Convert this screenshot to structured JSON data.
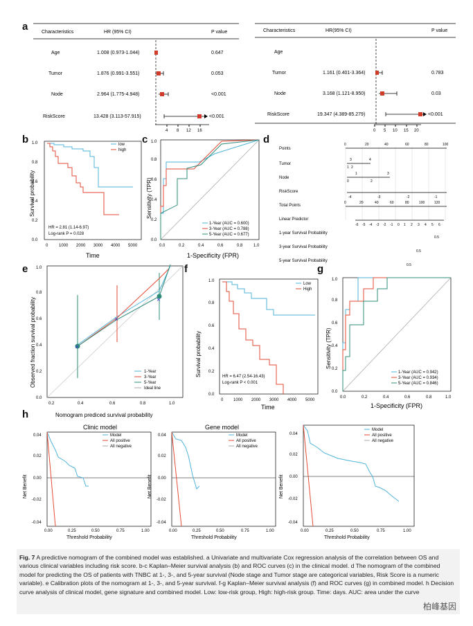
{
  "panel_labels": {
    "a": "a",
    "b": "b",
    "c": "c",
    "d": "d",
    "e": "e",
    "f": "f",
    "g": "g",
    "h": "h"
  },
  "forest_left": {
    "headers": [
      "Characteristics",
      "HR (95% CI)",
      "P value"
    ],
    "rows": [
      {
        "name": "Age",
        "hr": "1.008 (0.973-1.044)",
        "p": "0.647",
        "est": 1.008,
        "lo": 0.973,
        "hi": 1.044
      },
      {
        "name": "Tumor",
        "hr": "1.876 (0.991-3.551)",
        "p": "0.053",
        "est": 1.876,
        "lo": 0.991,
        "hi": 3.551
      },
      {
        "name": "Node",
        "hr": "2.964 (1.775-4.948)",
        "p": "<0.001",
        "est": 2.964,
        "lo": 1.775,
        "hi": 4.948
      },
      {
        "name": "RiskScore",
        "hr": "13.428 (3.113-57.915)",
        "p": "<0.001",
        "est": 13.428,
        "lo": 3.113,
        "hi": 57.915
      }
    ],
    "ticks": [
      "4",
      "8",
      "12",
      "16"
    ]
  },
  "forest_right": {
    "headers": [
      "Characteristics",
      "HR(95% CI)",
      "P value"
    ],
    "rows": [
      {
        "name": "Age",
        "hr": "",
        "p": ""
      },
      {
        "name": "Tumor",
        "hr": "1.161 (0.401-3.364)",
        "p": "0.783",
        "est": 1.161,
        "lo": 0.401,
        "hi": 3.364
      },
      {
        "name": "Node",
        "hr": "3.168 (1.121-8.950)",
        "p": "0.03",
        "est": 3.168,
        "lo": 1.121,
        "hi": 8.95
      },
      {
        "name": "RiskScore",
        "hr": "19.347 (4.389-85.279)",
        "p": "<0.001",
        "est": 19.347,
        "lo": 4.389,
        "hi": 85.279
      }
    ],
    "ticks": [
      "0",
      "5",
      "10",
      "15",
      "20"
    ]
  },
  "panel_b": {
    "ylabel": "Survival probability",
    "xlabel": "Time",
    "legend": [
      "low",
      "high"
    ],
    "hr": "HR = 2.81 (1.14-6.97)",
    "pval": "Log-rank P = 0.028",
    "xticks": [
      "0",
      "1000",
      "2000",
      "3000",
      "4000",
      "5000"
    ],
    "yticks": [
      "0.0",
      "0.2",
      "0.4",
      "0.6",
      "0.8",
      "1.0"
    ]
  },
  "panel_c": {
    "ylabel": "Sensitivity (TPR)",
    "xlabel": "1-Specificity (FPR)",
    "legend": [
      "1-Year (AUC = 0.600)",
      "3-Year (AUC = 0.788)",
      "5-Year (AUC = 0.677)"
    ],
    "ticks": [
      "0.0",
      "0.2",
      "0.4",
      "0.6",
      "0.8",
      "1.0"
    ]
  },
  "panel_d": {
    "rows": [
      "Points",
      "Tumor",
      "Node",
      "RiskScore",
      "Total Points",
      "Linear Predictor",
      "1-year Survival Probability",
      "3-year Survival Probability",
      "5-year Survival Probability"
    ],
    "points_ticks": [
      "0",
      "20",
      "40",
      "60",
      "80",
      "100"
    ],
    "total_ticks": [
      "0",
      "20",
      "40",
      "60",
      "80",
      "100",
      "120"
    ],
    "lp_ticks": [
      "-6",
      "-5",
      "-4",
      "-3",
      "-2",
      "-1",
      "0",
      "1",
      "2",
      "3",
      "4",
      "5",
      "6"
    ],
    "risk_ticks": [
      "-4",
      "-3",
      "-2",
      "-1"
    ],
    "tumor_labels": [
      "3",
      "4",
      "1",
      "2"
    ],
    "node_labels": [
      "1",
      "3",
      "0",
      "2"
    ],
    "surv1": "0.5",
    "surv3": "0.5",
    "surv5": "0.5"
  },
  "panel_e": {
    "ylabel": "Observed fraction survival probability",
    "xlabel": "Nomogram prediced survival probability",
    "legend": [
      "1-Year",
      "3-Year",
      "5-Year",
      "Ideal line"
    ],
    "xticks": [
      "0.2",
      "0.4",
      "0.6",
      "0.8",
      "1.0"
    ],
    "yticks": [
      "0.0",
      "0.2",
      "0.4",
      "0.6",
      "0.8",
      "1.0"
    ]
  },
  "panel_f": {
    "ylabel": "Survival probability",
    "xlabel": "Time",
    "legend": [
      "Low",
      "High"
    ],
    "hr": "HR = 6.47 (2.54-16.43)",
    "pval": "Log-rank P < 0.001",
    "xticks": [
      "0",
      "1000",
      "2000",
      "3000",
      "4000",
      "5000"
    ],
    "yticks": [
      "0.0",
      "0.2",
      "0.4",
      "0.6",
      "0.8",
      "1.0"
    ]
  },
  "panel_g": {
    "ylabel": "Sensitivity (TPR)",
    "xlabel": "1-Specificity (FPR)",
    "legend": [
      "1-Year (AUC = 0.942)",
      "3-Year (AUC = 0.934)",
      "5-Year (AUC = 0.846)"
    ],
    "ticks": [
      "0.0",
      "0.2",
      "0.4",
      "0.6",
      "0.8",
      "1.0"
    ]
  },
  "panel_h": {
    "titles": [
      "Clinic model",
      "Gene model",
      ""
    ],
    "ylabel": "Net Benefit",
    "xlabel": "Threshold Probability",
    "legend": [
      "Model",
      "All positive",
      "All negative"
    ],
    "xticks": [
      "0.00",
      "0.25",
      "0.50",
      "0.75",
      "1.00"
    ],
    "yticks": [
      "0.04",
      "0.02",
      "0.00",
      "-0.02",
      "-0.04"
    ]
  },
  "chart_data": [
    {
      "type": "line",
      "title": "b",
      "series": [
        {
          "name": "low",
          "x": [
            0,
            500,
            1000,
            1500,
            2000,
            2500,
            3000,
            3500,
            4000,
            5000
          ],
          "y": [
            1.0,
            0.98,
            0.96,
            0.94,
            0.91,
            0.86,
            0.52,
            0.52,
            0.52,
            0.52
          ]
        },
        {
          "name": "high",
          "x": [
            0,
            500,
            1000,
            1500,
            2000,
            2500,
            3000,
            3500,
            4000,
            4500
          ],
          "y": [
            1.0,
            0.88,
            0.8,
            0.74,
            0.6,
            0.47,
            0.47,
            0.24,
            0.24,
            0.24
          ]
        }
      ],
      "xlabel": "Time",
      "ylabel": "Survival probability",
      "ylim": [
        0,
        1
      ]
    },
    {
      "type": "line",
      "title": "c",
      "series": [
        {
          "name": "1-Year",
          "values": [
            0.6
          ]
        },
        {
          "name": "3-Year",
          "values": [
            0.788
          ]
        },
        {
          "name": "5-Year",
          "values": [
            0.677
          ]
        }
      ],
      "xlabel": "1-Specificity (FPR)",
      "ylabel": "Sensitivity (TPR)"
    },
    {
      "type": "scatter",
      "title": "e",
      "series": [
        {
          "name": "1-Year",
          "x": [
            0.4,
            0.66,
            0.93,
            0.98
          ],
          "y": [
            0.49,
            0.68,
            0.82,
            0.97
          ]
        },
        {
          "name": "3-Year",
          "x": [
            0.4,
            0.66,
            0.93,
            0.98
          ],
          "y": [
            0.5,
            0.68,
            0.9,
            0.96
          ]
        },
        {
          "name": "5-Year",
          "x": [
            0.4,
            0.66,
            0.93,
            0.98
          ],
          "y": [
            0.49,
            0.67,
            0.82,
            0.96
          ]
        }
      ],
      "xlabel": "Nomogram prediced survival probability",
      "ylabel": "Observed fraction survival probability"
    },
    {
      "type": "line",
      "title": "f",
      "series": [
        {
          "name": "Low",
          "x": [
            0,
            500,
            1000,
            1500,
            2000,
            2500,
            3000,
            4000,
            5000
          ],
          "y": [
            1.0,
            0.97,
            0.9,
            0.84,
            0.84,
            0.84,
            0.72,
            0.72,
            0.72
          ]
        },
        {
          "name": "High",
          "x": [
            0,
            500,
            1000,
            1500,
            2000,
            2500,
            3000,
            3500
          ],
          "y": [
            1.0,
            0.85,
            0.7,
            0.57,
            0.48,
            0.33,
            0.2,
            0.0
          ]
        }
      ],
      "xlabel": "Time",
      "ylabel": "Survival probability",
      "ylim": [
        0,
        1
      ]
    },
    {
      "type": "line",
      "title": "g",
      "series": [
        {
          "name": "1-Year",
          "values": [
            0.942
          ]
        },
        {
          "name": "3-Year",
          "values": [
            0.934
          ]
        },
        {
          "name": "5-Year",
          "values": [
            0.846
          ]
        }
      ],
      "xlabel": "1-Specificity (FPR)",
      "ylabel": "Sensitivity (TPR)"
    }
  ],
  "caption": {
    "fig": "Fig. 7",
    "text": "A predictive nomogram of the combined model was established. a Univariate and multivariate Cox regression analysis of the correlation between OS and various clinical variables including risk score. b-c Kaplan–Meier survival analysis (b) and ROC curves (c) in the clinical model. d The nomogram of the combined model for predicting the OS of patients with TNBC at 1-, 3-, and 5-year survival (Node stage and Tumor stage are categorical variables, Risk Score is a numeric variable). e Calibration plots of the nomogram at 1-, 3-, and 5-year survival. f-g Kaplan–Meier survival analysis (f) and ROC curves (g) in combined model. h Decision curve analysis of clinical model, gene signature and combined model. Low: low-risk group, High: high-risk group. Time: days. AUC: area under the curve"
  },
  "watermark": "柏峰基因"
}
